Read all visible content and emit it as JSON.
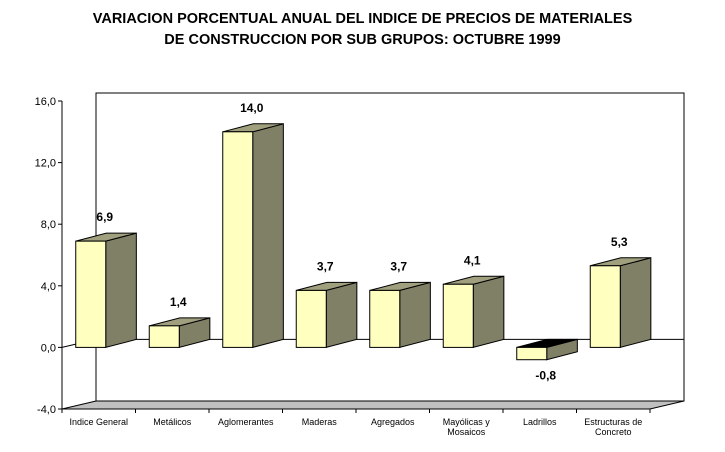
{
  "chart_data": {
    "type": "bar",
    "title_line1": "VARIACION PORCENTUAL ANUAL DEL INDICE DE PRECIOS DE MATERIALES",
    "title_line2": "DE CONSTRUCCION POR SUB GRUPOS: OCTUBRE 1999",
    "categories": [
      [
        "Indice General"
      ],
      [
        "Metálicos"
      ],
      [
        "Aglomerantes"
      ],
      [
        "Maderas"
      ],
      [
        "Agregados"
      ],
      [
        "Mayólicas y",
        "Mosaicos"
      ],
      [
        "Ladrillos"
      ],
      [
        "Estructuras de",
        "Concreto"
      ]
    ],
    "values": [
      6.9,
      1.4,
      14.0,
      3.7,
      3.7,
      4.1,
      -0.8,
      5.3
    ],
    "value_labels": [
      "6,9",
      "1,4",
      "14,0",
      "3,7",
      "3,7",
      "4,1",
      "-0,8",
      "5,3"
    ],
    "ylim": [
      -4,
      16
    ],
    "yticks": [
      -4,
      0,
      4,
      8,
      12,
      16
    ],
    "ytick_labels": [
      "-4,0",
      "0,0",
      "4,0",
      "8,0",
      "12,0",
      "16,0"
    ],
    "grid": false,
    "legend": "none",
    "colors": {
      "bar_front": "#ffffc0",
      "bar_side": "#808066",
      "bar_top": "#a0a07e",
      "floor": "#c0c0c0",
      "negative_top": "#000000"
    }
  }
}
